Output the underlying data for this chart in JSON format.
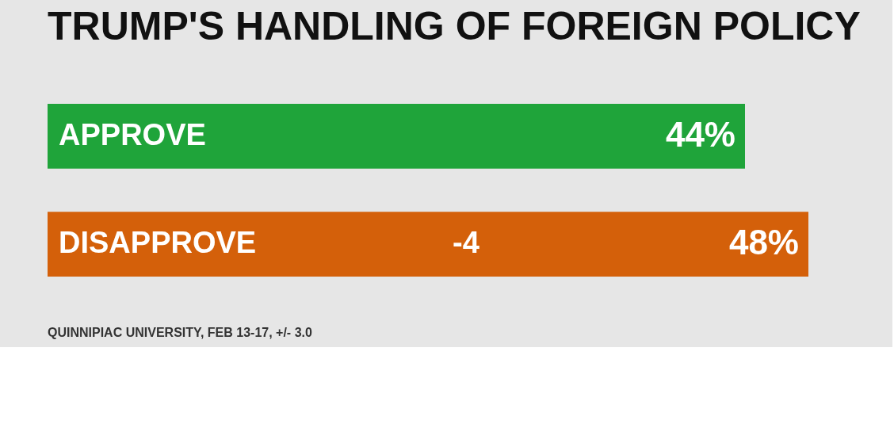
{
  "chart_data": {
    "type": "bar",
    "orientation": "horizontal",
    "title": "TRUMP'S HANDLING OF FOREIGN POLICY",
    "categories": [
      "APPROVE",
      "DISAPPROVE"
    ],
    "values": [
      44,
      48
    ],
    "colors": [
      "#1fa43a",
      "#d4600a"
    ],
    "value_labels": [
      "44%",
      "48%"
    ],
    "annotations": [
      "-4",
      "QUINNIPIAC UNIVERSITY, FEB 13-17, +/- 3.0"
    ],
    "grid": false
  }
}
